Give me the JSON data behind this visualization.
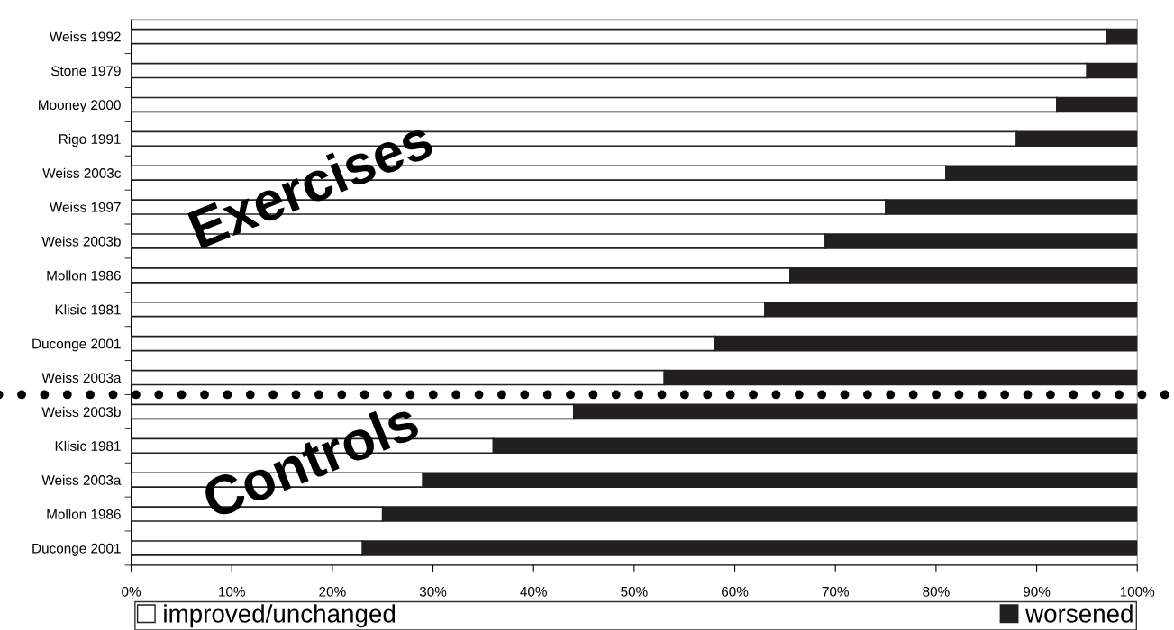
{
  "chart_data": {
    "type": "bar",
    "orientation": "horizontal",
    "stacked": true,
    "categories": [
      "Weiss 1992",
      "Stone 1979",
      "Mooney 2000",
      "Rigo 1991",
      "Weiss 2003c",
      "Weiss 1997",
      "Weiss 2003b",
      "Mollon 1986",
      "Klisic 1981",
      "Duconge 2001",
      "Weiss 2003a",
      "Weiss 2003b",
      "Klisic 1981",
      "Weiss 2003a",
      "Mollon 1986",
      "Duconge 2001"
    ],
    "series": [
      {
        "name": "improved/unchanged",
        "color": "#ffffff",
        "values": [
          97,
          95,
          92,
          88,
          81,
          75,
          69,
          65.5,
          63,
          58,
          53,
          44,
          36,
          29,
          25,
          23
        ]
      },
      {
        "name": "worsened",
        "color": "#231f20",
        "values": [
          3,
          5,
          8,
          12,
          19,
          25,
          31,
          34.5,
          37,
          42,
          47,
          56,
          64,
          71,
          75,
          77
        ]
      }
    ],
    "xlim": [
      0,
      100
    ],
    "xticks": [
      {
        "value": 0,
        "label": "0%"
      },
      {
        "value": 10,
        "label": "10%"
      },
      {
        "value": 20,
        "label": "20%"
      },
      {
        "value": 30,
        "label": "30%"
      },
      {
        "value": 40,
        "label": "40%"
      },
      {
        "value": 50,
        "label": "50%"
      },
      {
        "value": 60,
        "label": "60%"
      },
      {
        "value": 70,
        "label": "70%"
      },
      {
        "value": 80,
        "label": "80%"
      },
      {
        "value": 90,
        "label": "90%"
      },
      {
        "value": 100,
        "label": "100%"
      }
    ],
    "annotations": [
      "Exercises",
      "Controls"
    ],
    "legend": "bottom",
    "grid": false
  }
}
